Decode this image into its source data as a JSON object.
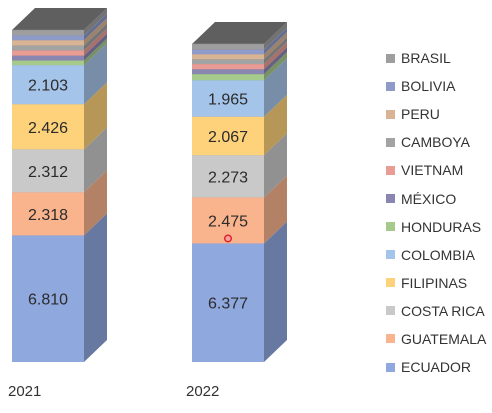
{
  "chart_data": {
    "type": "bar",
    "stacked": true,
    "three_d": true,
    "categories": [
      "2021",
      "2022"
    ],
    "series": [
      {
        "name": "ECUADOR",
        "color": "#8fa8de",
        "values": [
          6810,
          6377
        ],
        "labels": [
          "6.810",
          "6.377"
        ]
      },
      {
        "name": "GUATEMALA",
        "color": "#f9b48e",
        "values": [
          2318,
          2475
        ],
        "labels": [
          "2.318",
          "2.475"
        ]
      },
      {
        "name": "COSTA RICA",
        "color": "#c9c9c9",
        "values": [
          2312,
          2273
        ],
        "labels": [
          "2.312",
          "2.273"
        ]
      },
      {
        "name": "FILIPINAS",
        "color": "#fdd27a",
        "values": [
          2426,
          2067
        ],
        "labels": [
          "2.426",
          "2.067"
        ]
      },
      {
        "name": "COLOMBIA",
        "color": "#a5c4ea",
        "values": [
          2103,
          1965
        ],
        "labels": [
          "2.103",
          "1.965"
        ]
      },
      {
        "name": "HONDURAS",
        "color": "#a6c98c",
        "values": [
          250,
          330
        ],
        "labels": [
          "",
          ""
        ]
      },
      {
        "name": "MÉXICO",
        "color": "#8a86b2",
        "values": [
          260,
          260
        ],
        "labels": [
          "",
          ""
        ]
      },
      {
        "name": "VIETNAM",
        "color": "#e99c94",
        "values": [
          280,
          280
        ],
        "labels": [
          "",
          ""
        ]
      },
      {
        "name": "CAMBOYA",
        "color": "#a3a3a3",
        "values": [
          270,
          260
        ],
        "labels": [
          "",
          ""
        ]
      },
      {
        "name": "PERU",
        "color": "#d8b494",
        "values": [
          280,
          270
        ],
        "labels": [
          "",
          ""
        ]
      },
      {
        "name": "BOLIVIA",
        "color": "#8e9ac8",
        "values": [
          260,
          250
        ],
        "labels": [
          "",
          ""
        ]
      },
      {
        "name": "BRASIL",
        "color": "#9e9e9e",
        "values": [
          290,
          300
        ],
        "labels": [
          "",
          ""
        ]
      }
    ],
    "legend_position": "right",
    "legend_order": [
      "BRASIL",
      "BOLIVIA",
      "PERU",
      "CAMBOYA",
      "VIETNAM",
      "MÉXICO",
      "HONDURAS",
      "COLOMBIA",
      "FILIPINAS",
      "COSTA RICA",
      "GUATEMALA",
      "ECUADOR"
    ],
    "marker": {
      "category": "2022",
      "series": "GUATEMALA",
      "color": "#e02020"
    },
    "grid": false,
    "title": "",
    "xlabel": "",
    "ylabel": ""
  }
}
